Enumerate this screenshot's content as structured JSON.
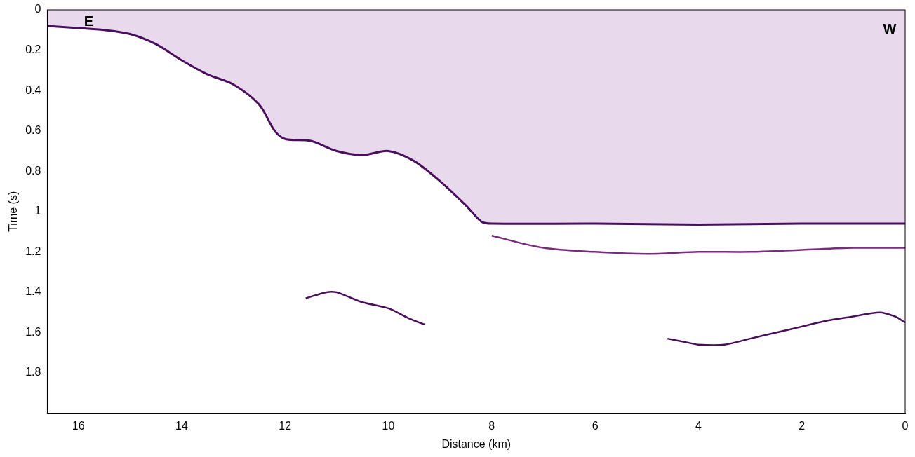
{
  "chart_data": {
    "type": "line",
    "x_label": "Distance (km)",
    "y_label": "Time (s)",
    "xlim": [
      16.6,
      0
    ],
    "xticks": [
      0,
      2,
      4,
      6,
      8,
      10,
      12,
      14,
      16
    ],
    "ylim": [
      2,
      0
    ],
    "yticks": [
      0,
      0.2,
      0.4,
      0.6,
      0.8,
      1,
      1.2,
      1.4,
      1.6,
      1.8
    ],
    "grid": false,
    "annotations": [
      {
        "text": "E",
        "x": 15.8,
        "y": 0.06
      },
      {
        "text": "W",
        "x": 0.3,
        "y": 0.1
      }
    ],
    "series": [
      {
        "color": "#4a0f5c",
        "x": [
          16.6,
          16,
          15.5,
          15,
          14.5,
          14,
          13.5,
          13,
          12.5,
          12.2,
          12,
          11.5,
          11,
          10.5,
          10,
          9.5,
          9,
          8.5,
          8.2,
          8,
          6,
          4,
          2,
          0
        ],
        "values": [
          0.08,
          0.09,
          0.1,
          0.12,
          0.17,
          0.25,
          0.32,
          0.37,
          0.47,
          0.6,
          0.64,
          0.65,
          0.7,
          0.72,
          0.7,
          0.75,
          0.85,
          0.97,
          1.05,
          1.06,
          1.06,
          1.065,
          1.06,
          1.06
        ]
      },
      {
        "color": "#7a2a7f",
        "x": [
          8,
          7,
          6,
          5,
          4,
          3,
          2,
          1,
          0
        ],
        "values": [
          1.12,
          1.18,
          1.2,
          1.21,
          1.2,
          1.2,
          1.19,
          1.18,
          1.18
        ]
      },
      {
        "color": "#4a0f5c",
        "x": [
          11.6,
          11.2,
          11,
          10.8,
          10.5,
          10,
          9.6,
          9.3
        ],
        "values": [
          1.43,
          1.4,
          1.4,
          1.42,
          1.45,
          1.48,
          1.53,
          1.56
        ]
      },
      {
        "color": "#4a0f5c",
        "x": [
          4.6,
          4.2,
          4,
          3.5,
          3,
          2.5,
          2,
          1.5,
          1,
          0.5,
          0.2,
          0
        ],
        "values": [
          1.63,
          1.65,
          1.66,
          1.66,
          1.63,
          1.6,
          1.57,
          1.54,
          1.52,
          1.5,
          1.52,
          1.55
        ]
      }
    ]
  }
}
